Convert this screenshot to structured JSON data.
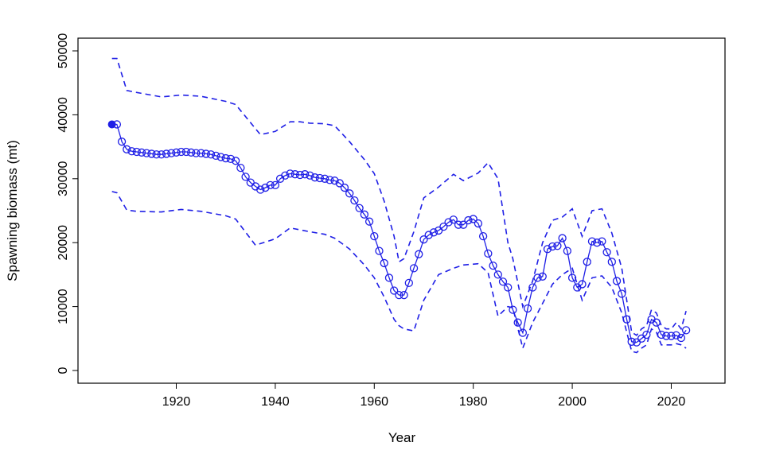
{
  "chart_data": {
    "type": "line",
    "xlabel": "Year",
    "ylabel": "Spawning biomass (mt)",
    "xlim": [
      1904,
      2027
    ],
    "ylim": [
      0,
      50000
    ],
    "x_ticks": [
      1920,
      1940,
      1960,
      1980,
      2000,
      2020
    ],
    "y_ticks": [
      0,
      10000,
      20000,
      30000,
      40000,
      50000
    ],
    "grid": false,
    "legend": "none",
    "colors": {
      "series": "#1f1fe6",
      "axis": "#000000"
    },
    "initial_point": {
      "x": 1907,
      "y": 38500
    },
    "series": [
      {
        "role": "estimate",
        "style": "solid line with open circle markers",
        "x": [
          1908,
          1909,
          1910,
          1911,
          1912,
          1913,
          1914,
          1915,
          1916,
          1917,
          1918,
          1919,
          1920,
          1921,
          1922,
          1923,
          1924,
          1925,
          1926,
          1927,
          1928,
          1929,
          1930,
          1931,
          1932,
          1933,
          1934,
          1935,
          1936,
          1937,
          1938,
          1939,
          1940,
          1941,
          1942,
          1943,
          1944,
          1945,
          1946,
          1947,
          1948,
          1949,
          1950,
          1951,
          1952,
          1953,
          1954,
          1955,
          1956,
          1957,
          1958,
          1959,
          1960,
          1961,
          1962,
          1963,
          1964,
          1965,
          1966,
          1967,
          1968,
          1969,
          1970,
          1971,
          1972,
          1973,
          1974,
          1975,
          1976,
          1977,
          1978,
          1979,
          1980,
          1981,
          1982,
          1983,
          1984,
          1985,
          1986,
          1987,
          1988,
          1989,
          1990,
          1991,
          1992,
          1993,
          1994,
          1995,
          1996,
          1997,
          1998,
          1999,
          2000,
          2001,
          2002,
          2003,
          2004,
          2005,
          2006,
          2007,
          2008,
          2009,
          2010,
          2011,
          2012,
          2013,
          2014,
          2015,
          2016,
          2017,
          2018,
          2019,
          2020,
          2021,
          2022,
          2023
        ],
        "y": [
          38500,
          35800,
          34600,
          34300,
          34200,
          34100,
          34000,
          33900,
          33800,
          33800,
          33900,
          34000,
          34100,
          34200,
          34200,
          34100,
          34000,
          34000,
          33900,
          33800,
          33600,
          33400,
          33200,
          33100,
          32800,
          31700,
          30300,
          29400,
          28800,
          28300,
          28600,
          29000,
          29000,
          30000,
          30500,
          30800,
          30700,
          30600,
          30700,
          30500,
          30200,
          30100,
          30000,
          29800,
          29700,
          29300,
          28600,
          27700,
          26600,
          25400,
          24400,
          23300,
          21000,
          18700,
          16800,
          14500,
          12500,
          11800,
          11800,
          13700,
          16000,
          18200,
          20500,
          21200,
          21600,
          21900,
          22500,
          23200,
          23600,
          22800,
          22800,
          23500,
          23700,
          23000,
          21000,
          18300,
          16400,
          15000,
          13900,
          13000,
          9500,
          7500,
          5900,
          9700,
          13000,
          14500,
          14700,
          19000,
          19400,
          19500,
          20700,
          18700,
          14500,
          13000,
          13500,
          17000,
          20200,
          20000,
          20200,
          18500,
          17000,
          14000,
          12000,
          8000,
          4500,
          4400,
          5000,
          5600,
          8000,
          7500,
          5600,
          5400,
          5400,
          5500,
          5100,
          6300
        ]
      },
      {
        "role": "upper interval",
        "style": "dashed line",
        "x": [
          1907,
          1908,
          1910,
          1912,
          1917,
          1921,
          1925,
          1930,
          1932,
          1937,
          1940,
          1943,
          1945,
          1947,
          1950,
          1952,
          1955,
          1958,
          1960,
          1962,
          1964,
          1965,
          1966,
          1968,
          1970,
          1973,
          1976,
          1978,
          1981,
          1983,
          1985,
          1987,
          1988,
          1990,
          1992,
          1994,
          1996,
          1998,
          2000,
          2002,
          2004,
          2006,
          2008,
          2010,
          2012,
          2013,
          2014,
          2015,
          2016,
          2017,
          2018,
          2019,
          2020,
          2021,
          2022,
          2023
        ],
        "y": [
          48800,
          48800,
          43800,
          43500,
          42800,
          43100,
          42900,
          42100,
          41600,
          36900,
          37400,
          38900,
          38900,
          38700,
          38600,
          38300,
          35800,
          33000,
          30800,
          26500,
          21000,
          17000,
          17500,
          21700,
          27000,
          28700,
          30700,
          29700,
          30900,
          32500,
          30000,
          20000,
          17500,
          10000,
          14000,
          20000,
          23500,
          24000,
          25300,
          21000,
          25000,
          25300,
          21500,
          16000,
          6000,
          5500,
          6500,
          7000,
          9500,
          9000,
          7000,
          6500,
          6500,
          7500,
          6500,
          9300
        ]
      },
      {
        "role": "lower interval",
        "style": "dashed line",
        "x": [
          1907,
          1908,
          1910,
          1912,
          1917,
          1921,
          1925,
          1930,
          1932,
          1936,
          1940,
          1943,
          1945,
          1947,
          1950,
          1952,
          1955,
          1958,
          1960,
          1962,
          1964,
          1965,
          1966,
          1968,
          1970,
          1973,
          1976,
          1978,
          1981,
          1983,
          1985,
          1987,
          1988,
          1990,
          1992,
          1994,
          1996,
          1998,
          2000,
          2002,
          2004,
          2006,
          2008,
          2010,
          2012,
          2013,
          2014,
          2015,
          2016,
          2017,
          2018,
          2019,
          2020,
          2021,
          2022,
          2023
        ],
        "y": [
          28000,
          27800,
          25100,
          24900,
          24800,
          25200,
          24900,
          24200,
          23700,
          19600,
          20600,
          22300,
          22000,
          21700,
          21300,
          20700,
          19000,
          16500,
          14500,
          11500,
          8000,
          7000,
          6500,
          6200,
          11000,
          15000,
          16000,
          16500,
          16700,
          15300,
          8500,
          10000,
          9800,
          3500,
          7500,
          10500,
          13500,
          15000,
          16000,
          11000,
          14500,
          14800,
          13000,
          9000,
          3000,
          2800,
          3500,
          4000,
          6500,
          6000,
          4000,
          4000,
          4000,
          4200,
          4000,
          3500
        ]
      }
    ]
  }
}
